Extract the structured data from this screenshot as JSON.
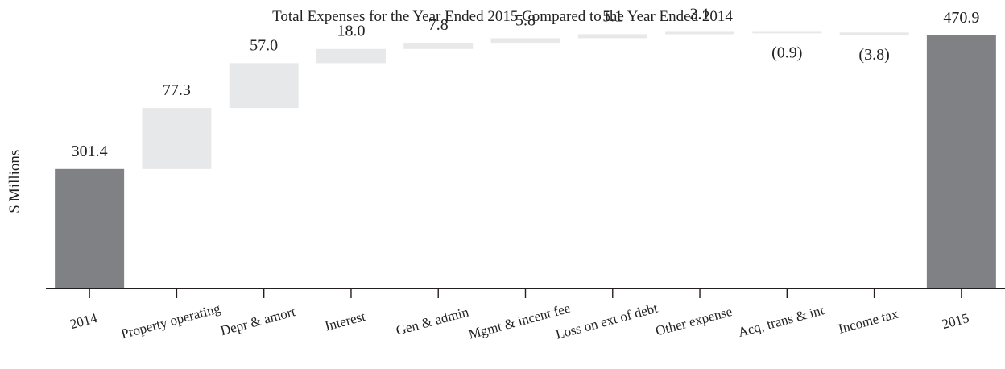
{
  "chart_data": {
    "type": "bar",
    "variant": "waterfall",
    "title": "Total Expenses for the Year Ended 2015 Compared to the Year Ended 2014",
    "ylabel": "$ Millions",
    "xlabel": "",
    "categories": [
      "2014",
      "Property operating",
      "Depr & amort",
      "Interest",
      "Gen & admin",
      "Mgmt & incent fee",
      "Loss on ext of debt",
      "Other expense",
      "Acq, trans & int",
      "Income tax",
      "2015"
    ],
    "values": [
      301.4,
      77.3,
      57.0,
      18.0,
      7.8,
      5.8,
      5.1,
      3.1,
      -0.9,
      -3.8,
      470.9
    ],
    "kinds": [
      "total",
      "delta",
      "delta",
      "delta",
      "delta",
      "delta",
      "delta",
      "delta",
      "delta",
      "delta",
      "total"
    ],
    "data_labels": [
      "301.4",
      "77.3",
      "57.0",
      "18.0",
      "7.8",
      "5.8",
      "5.1",
      "3.1",
      "(0.9)",
      "(3.8)",
      "470.9"
    ],
    "ylim": [
      150,
      480
    ],
    "grid": false,
    "legend": "none",
    "colors": {
      "total": "#808184",
      "delta": "#e7e8e9",
      "axis": "#231f20"
    }
  }
}
